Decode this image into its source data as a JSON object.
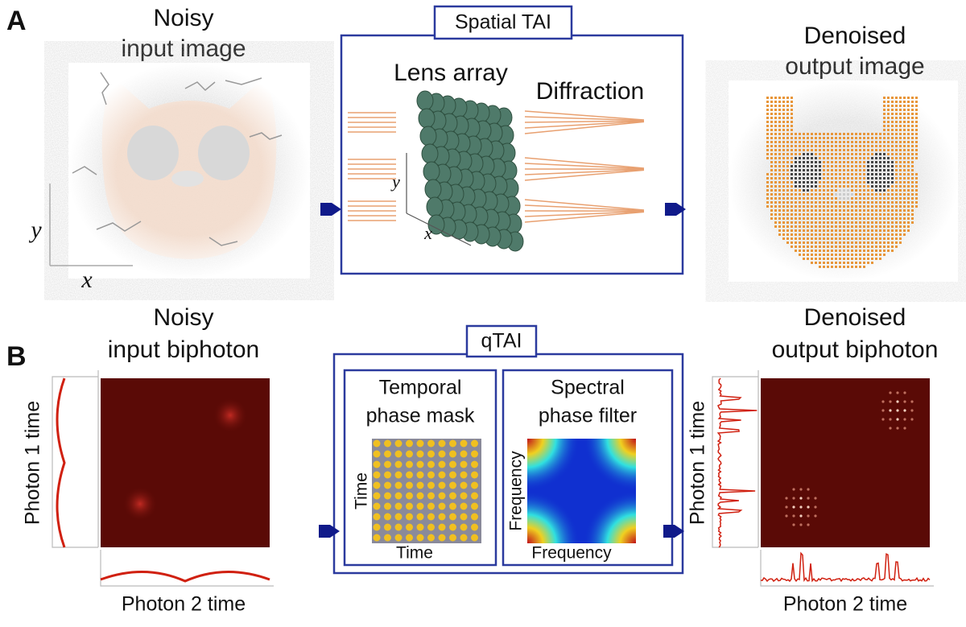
{
  "panel_a": {
    "label": "A",
    "input_title": [
      "Noisy",
      "input image"
    ],
    "axis_y": "y",
    "axis_x": "x",
    "box_title": "Spatial TAI",
    "lens_label": "Lens array",
    "diffraction_label": "Diffraction",
    "lens_axis_y": "y",
    "lens_axis_x": "x",
    "output_title": [
      "Denoised",
      "output image"
    ]
  },
  "panel_b": {
    "label": "B",
    "input_title": [
      "Noisy",
      "input biphoton"
    ],
    "input_y_label": "Photon 1 time",
    "input_x_label": "Photon 2 time",
    "box_title": "qTAI",
    "mask_title": [
      "Temporal",
      "phase mask"
    ],
    "mask_y_label": "Time",
    "mask_x_label": "Time",
    "filter_title": [
      "Spectral",
      "phase filter"
    ],
    "filter_y_label": "Frequency",
    "filter_x_label": "Frequency",
    "output_title": [
      "Denoised",
      "output biphoton"
    ],
    "output_y_label": "Photon 1 time",
    "output_x_label": "Photon 2 time"
  }
}
